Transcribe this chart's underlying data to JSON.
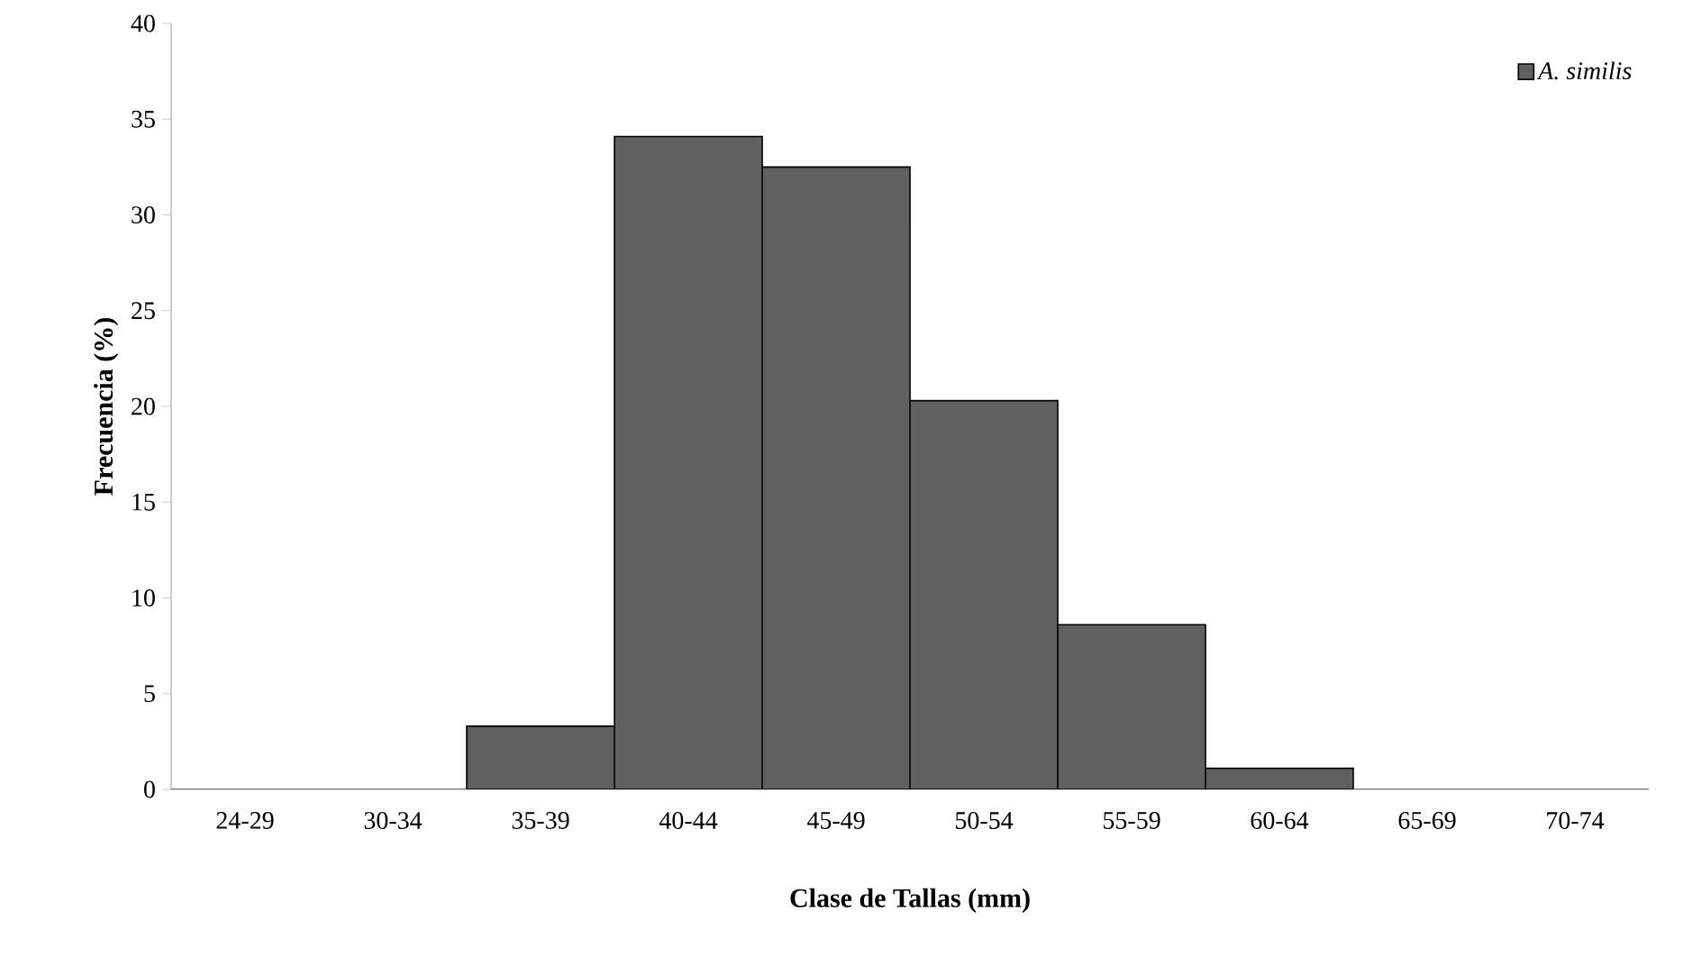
{
  "chart_data": {
    "type": "bar",
    "xlabel": "Clase de Tallas (mm)",
    "ylabel": "Frecuencia (%)",
    "categories": [
      "24-29",
      "30-34",
      "35-39",
      "40-44",
      "45-49",
      "50-54",
      "55-59",
      "60-64",
      "65-69",
      "70-74"
    ],
    "series": [
      {
        "name": "A. similis",
        "color": "#606060",
        "values": [
          0,
          0,
          3.3,
          34.1,
          32.5,
          20.3,
          8.6,
          1.1,
          0,
          0
        ]
      }
    ],
    "ylim": [
      0,
      40
    ],
    "yticks": [
      0,
      5,
      10,
      15,
      20,
      25,
      30,
      35,
      40
    ],
    "grid": false,
    "legend": "top right"
  }
}
